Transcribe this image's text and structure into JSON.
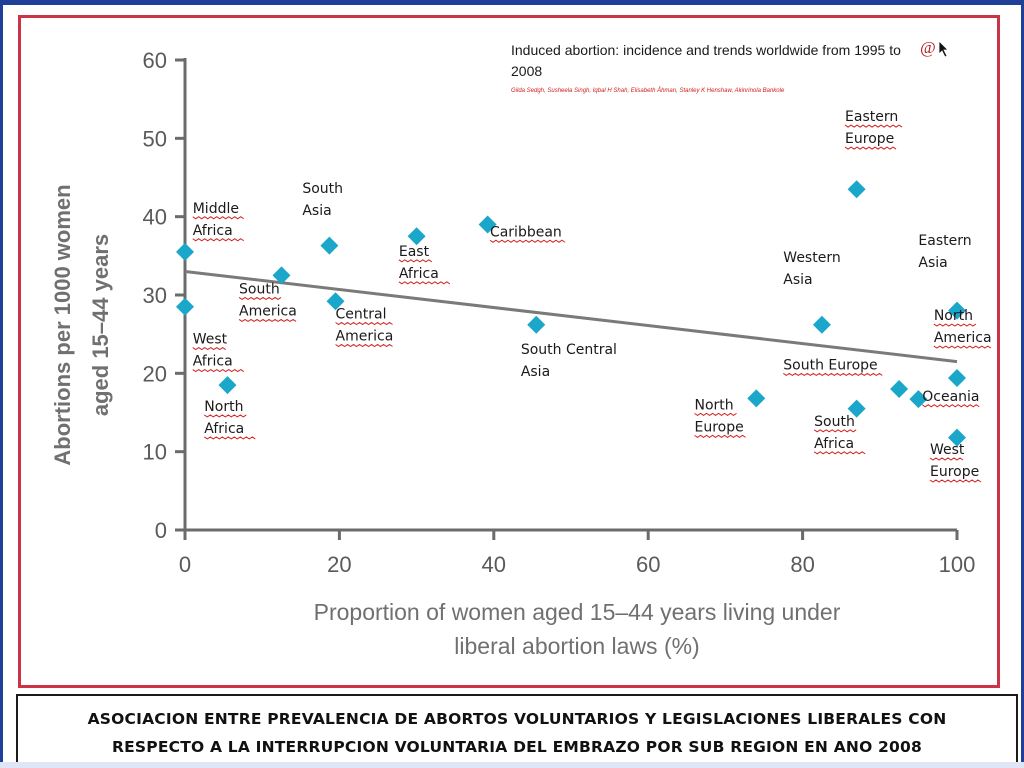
{
  "publication": {
    "title": "Induced abortion: incidence and trends worldwide from 1995 to 2008",
    "authors": "Gilda Sedgh, Susheela Singh, Iqbal H Shah, Elisabeth Åhman, Stanley K Henshaw, Akinrinola Bankole",
    "logo_text": "@",
    "accent_color": "#d02020"
  },
  "chart_data": {
    "type": "scatter",
    "title": "",
    "xlabel_lines": [
      "Proportion of women aged 15–44 years living under",
      "liberal abortion laws (%)"
    ],
    "ylabel_lines": [
      "Abortions per 1000 women",
      "aged 15–44 years"
    ],
    "xlim": [
      0,
      100
    ],
    "ylim": [
      0,
      60
    ],
    "xticks": [
      0,
      20,
      40,
      60,
      80,
      100
    ],
    "yticks": [
      0,
      10,
      20,
      30,
      40,
      50,
      60
    ],
    "grid": false,
    "marker": "diamond",
    "marker_color": "#1aa7c9",
    "trendline": {
      "x": [
        0,
        100
      ],
      "y": [
        33,
        21.5
      ],
      "color": "#7a7a7a"
    },
    "points": [
      {
        "x": 0,
        "y": 35.5
      },
      {
        "x": 0,
        "y": 28.5
      },
      {
        "x": 5.5,
        "y": 18.5
      },
      {
        "x": 12.5,
        "y": 32.5
      },
      {
        "x": 18.7,
        "y": 36.3
      },
      {
        "x": 19.5,
        "y": 29.2
      },
      {
        "x": 30,
        "y": 37.5
      },
      {
        "x": 39.2,
        "y": 39
      },
      {
        "x": 45.5,
        "y": 26.2
      },
      {
        "x": 74,
        "y": 16.8
      },
      {
        "x": 82.5,
        "y": 26.2
      },
      {
        "x": 87,
        "y": 43.5
      },
      {
        "x": 87,
        "y": 15.5
      },
      {
        "x": 92.5,
        "y": 18
      },
      {
        "x": 95,
        "y": 16.7
      },
      {
        "x": 100,
        "y": 28
      },
      {
        "x": 100,
        "y": 19.4
      },
      {
        "x": 100,
        "y": 11.8
      }
    ],
    "region_labels": [
      {
        "lines": [
          "Middle",
          "Africa"
        ],
        "x": 1,
        "y": 40.5,
        "underline": true
      },
      {
        "lines": [
          "South",
          "Asia"
        ],
        "x": 15.2,
        "y": 43,
        "underline": false
      },
      {
        "lines": [
          "East",
          "Africa"
        ],
        "x": 27.7,
        "y": 35,
        "underline": true
      },
      {
        "lines": [
          "Caribbean"
        ],
        "x": 39.5,
        "y": 37.5,
        "underline": true
      },
      {
        "lines": [
          "South",
          "America"
        ],
        "x": 7,
        "y": 30.2,
        "underline": true
      },
      {
        "lines": [
          "Central",
          "America"
        ],
        "x": 19.5,
        "y": 27,
        "underline": true
      },
      {
        "lines": [
          "West",
          "Africa"
        ],
        "x": 1,
        "y": 23.8,
        "underline": true
      },
      {
        "lines": [
          "North",
          "Africa"
        ],
        "x": 2.5,
        "y": 15.2,
        "underline": true
      },
      {
        "lines": [
          "South Central",
          "Asia"
        ],
        "x": 43.5,
        "y": 22.5,
        "underline": false
      },
      {
        "lines": [
          "North",
          "Europe"
        ],
        "x": 66,
        "y": 15.4,
        "underline": true
      },
      {
        "lines": [
          "Western",
          "Asia"
        ],
        "x": 77.5,
        "y": 34.2,
        "underline": false
      },
      {
        "lines": [
          "Eastern",
          "Europe"
        ],
        "x": 85.5,
        "y": 52.2,
        "underline": true
      },
      {
        "lines": [
          "Eastern",
          "Asia"
        ],
        "x": 95,
        "y": 36.4,
        "underline": false
      },
      {
        "lines": [
          "South Europe"
        ],
        "x": 77.5,
        "y": 20.5,
        "underline": true
      },
      {
        "lines": [
          "South",
          "Africa"
        ],
        "x": 81.5,
        "y": 13.3,
        "underline": true
      },
      {
        "lines": [
          "North",
          "America"
        ],
        "x": 97,
        "y": 26.8,
        "underline": true
      },
      {
        "lines": [
          "Oceania"
        ],
        "x": 95.5,
        "y": 16.5,
        "underline": true
      },
      {
        "lines": [
          "West",
          "Europe"
        ],
        "x": 96.5,
        "y": 9.7,
        "underline": true
      }
    ]
  },
  "caption": {
    "line1": "ASOCIACION ENTRE PREVALENCIA DE ABORTOS VOLUNTARIOS Y LEGISLACIONES LIBERALES CON",
    "line2": "RESPECTO A LA INTERRUPCION VOLUNTARIA DEL EMBRAZO POR SUB REGION EN ANO 2008"
  },
  "frame_colors": {
    "outer": "#1f3f99",
    "panel": "#cc3347"
  }
}
